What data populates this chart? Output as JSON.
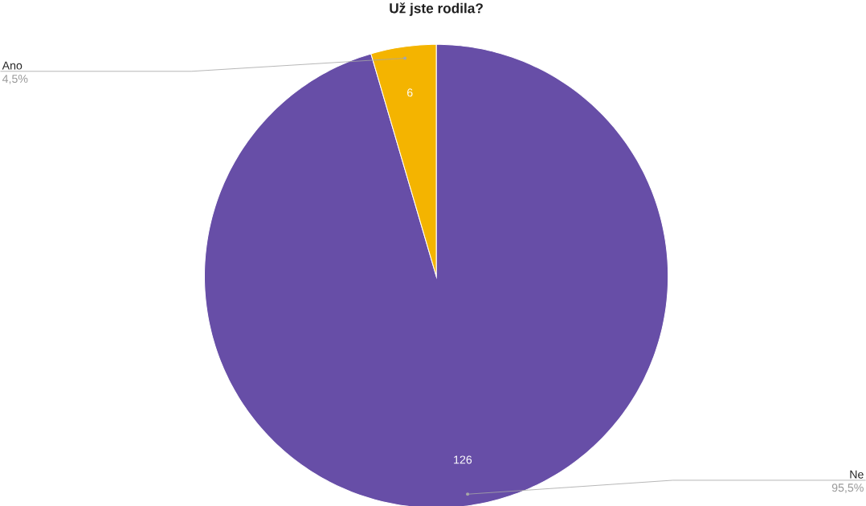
{
  "chart_data": {
    "type": "pie",
    "title": "Už jste rodila?",
    "categories": [
      "Ne",
      "Ano"
    ],
    "values": [
      126,
      6
    ],
    "colors": [
      "#674ea7",
      "#f4b400"
    ],
    "data_labels": true,
    "annotations": [
      "95,5%",
      "4,5%"
    ]
  }
}
